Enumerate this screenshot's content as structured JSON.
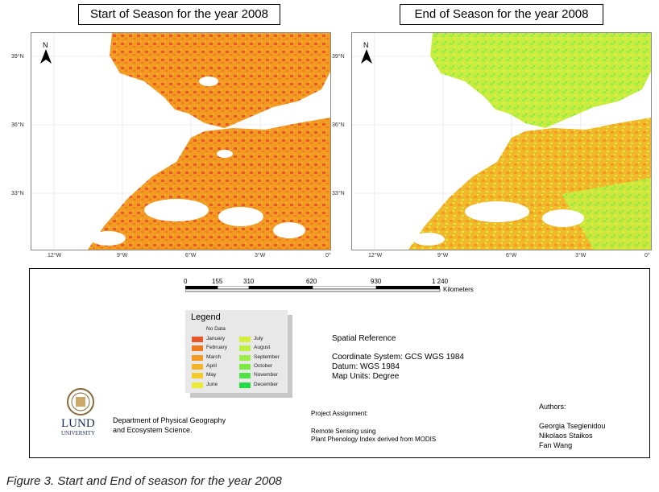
{
  "maps": [
    {
      "title": "Start of Season for the year 2008",
      "palette": "start"
    },
    {
      "title": "End of Season for the year 2008",
      "palette": "end"
    }
  ],
  "lat_labels": [
    "39°N",
    "36°N",
    "33°N"
  ],
  "lon_labels": [
    "12°W",
    "9°W",
    "6°W",
    "3°W",
    "0°"
  ],
  "north_label": "N",
  "scale_bar": {
    "ticks": [
      "0",
      "155",
      "310",
      "620",
      "930",
      "1 240"
    ],
    "unit": "Kilometers"
  },
  "legend": {
    "title": "Legend",
    "no_data": "No Data",
    "items": [
      {
        "label": "January",
        "color": "#e8572a"
      },
      {
        "label": "February",
        "color": "#ee7a1e"
      },
      {
        "label": "March",
        "color": "#f29a22"
      },
      {
        "label": "April",
        "color": "#f4b428"
      },
      {
        "label": "May",
        "color": "#f2cc2a"
      },
      {
        "label": "June",
        "color": "#eaea38"
      },
      {
        "label": "July",
        "color": "#d4f03c"
      },
      {
        "label": "August",
        "color": "#bbf03e"
      },
      {
        "label": "September",
        "color": "#9aee44"
      },
      {
        "label": "October",
        "color": "#78ea42"
      },
      {
        "label": "November",
        "color": "#4fe244"
      },
      {
        "label": "December",
        "color": "#22dc46"
      }
    ]
  },
  "spatial_reference": {
    "heading": "Spatial Reference",
    "coordinate_system": "Coordinate System: GCS WGS 1984",
    "datum": "Datum: WGS 1984",
    "units": "Map Units: Degree"
  },
  "university": {
    "name": "LUND",
    "sub": "UNIVERSITY"
  },
  "department": [
    "Department of Physical Geography",
    "and Ecosystem Science."
  ],
  "project": {
    "heading": "Project Assignment:",
    "lines": [
      "Remote Sensing using",
      "Plant Phenology Index derived from MODIS"
    ]
  },
  "authors": {
    "heading": "Authors:",
    "names": [
      "Georgia Tsegienidou",
      "Nikolaos Staikos",
      "Fan Wang"
    ]
  },
  "caption": "Figure 3. Start and End of season for the year 2008",
  "colors": {
    "land_start": "#f29a22",
    "land_end": "#bfe846",
    "no_data": "#ffffff"
  }
}
